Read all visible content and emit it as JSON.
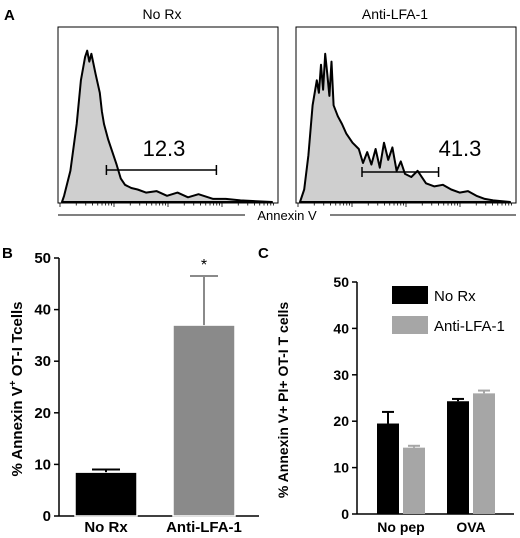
{
  "colors": {
    "histogram_fill": "#cfcfcf",
    "outline": "#000000",
    "bar_no_rx": "#000000",
    "bar_anti_lfa1": "#8a8a8a",
    "bar_c_anti_lfa1": "#a6a6a6"
  },
  "chart_data": [
    {
      "panel": "A",
      "type": "area",
      "titles": [
        "No Rx",
        "Anti-LFA-1"
      ],
      "xlabel": "Annexin V",
      "gate_values": [
        "12.3",
        "41.3"
      ],
      "series": [
        {
          "name": "No Rx",
          "x": [
            0,
            0.01,
            0.04,
            0.07,
            0.09,
            0.11,
            0.12,
            0.13,
            0.14,
            0.16,
            0.18,
            0.19,
            0.2,
            0.22,
            0.24,
            0.26,
            0.28,
            0.3,
            0.33,
            0.36,
            0.4,
            0.45,
            0.5,
            0.55,
            0.6,
            0.65,
            0.72,
            0.78,
            0.85,
            1.0
          ],
          "y": [
            0,
            0.04,
            0.2,
            0.5,
            0.78,
            0.93,
            0.97,
            0.9,
            0.95,
            0.82,
            0.7,
            0.58,
            0.5,
            0.4,
            0.32,
            0.24,
            0.15,
            0.11,
            0.09,
            0.08,
            0.06,
            0.07,
            0.04,
            0.06,
            0.03,
            0.05,
            0.02,
            0.02,
            0.01,
            0.0
          ]
        },
        {
          "name": "Anti-LFA-1",
          "x": [
            0,
            0.02,
            0.04,
            0.06,
            0.08,
            0.09,
            0.1,
            0.11,
            0.12,
            0.13,
            0.14,
            0.15,
            0.16,
            0.18,
            0.2,
            0.22,
            0.25,
            0.28,
            0.3,
            0.32,
            0.34,
            0.36,
            0.38,
            0.4,
            0.42,
            0.44,
            0.46,
            0.48,
            0.5,
            0.53,
            0.56,
            0.6,
            0.64,
            0.68,
            0.72,
            0.76,
            0.8,
            0.84,
            0.88,
            0.92,
            1.0
          ],
          "y": [
            0,
            0.08,
            0.3,
            0.62,
            0.78,
            0.7,
            0.88,
            0.72,
            0.95,
            0.82,
            0.68,
            0.9,
            0.62,
            0.55,
            0.5,
            0.44,
            0.38,
            0.34,
            0.25,
            0.32,
            0.24,
            0.34,
            0.22,
            0.38,
            0.27,
            0.35,
            0.2,
            0.26,
            0.18,
            0.16,
            0.2,
            0.12,
            0.1,
            0.11,
            0.08,
            0.06,
            0.07,
            0.04,
            0.02,
            0.01,
            0.0
          ]
        }
      ],
      "gate_ranges": [
        [
          0.22,
          1.0
        ],
        [
          0.3,
          0.9
        ]
      ]
    },
    {
      "panel": "B",
      "type": "bar",
      "categories": [
        "No Rx",
        "Anti-LFA-1"
      ],
      "values": [
        8.5,
        37
      ],
      "errors": [
        0.5,
        9.5
      ],
      "ylabel_prefix": "% Annexin V",
      "ylabel_sup": "+",
      "ylabel_suffix": " OT-I Tcells",
      "ylim": [
        0,
        50
      ],
      "yticks": [
        "0",
        "10",
        "20",
        "30",
        "40",
        "50"
      ],
      "annotation": "*"
    },
    {
      "panel": "C",
      "type": "bar",
      "categories": [
        "No pep",
        "OVA"
      ],
      "series": [
        {
          "name": "No Rx",
          "values": [
            19.5,
            24.3
          ],
          "errors": [
            2.5,
            0.5
          ]
        },
        {
          "name": "Anti-LFA-1",
          "values": [
            14.3,
            26.0
          ],
          "errors": [
            0.4,
            0.6
          ]
        }
      ],
      "ylabel": "% Annexin V+ PI+ OT-I T cells",
      "ylim": [
        0,
        50
      ],
      "yticks": [
        "0",
        "10",
        "20",
        "30",
        "40",
        "50"
      ],
      "legend_position": "top-left"
    }
  ],
  "panel_labels": [
    "A",
    "B",
    "C"
  ]
}
